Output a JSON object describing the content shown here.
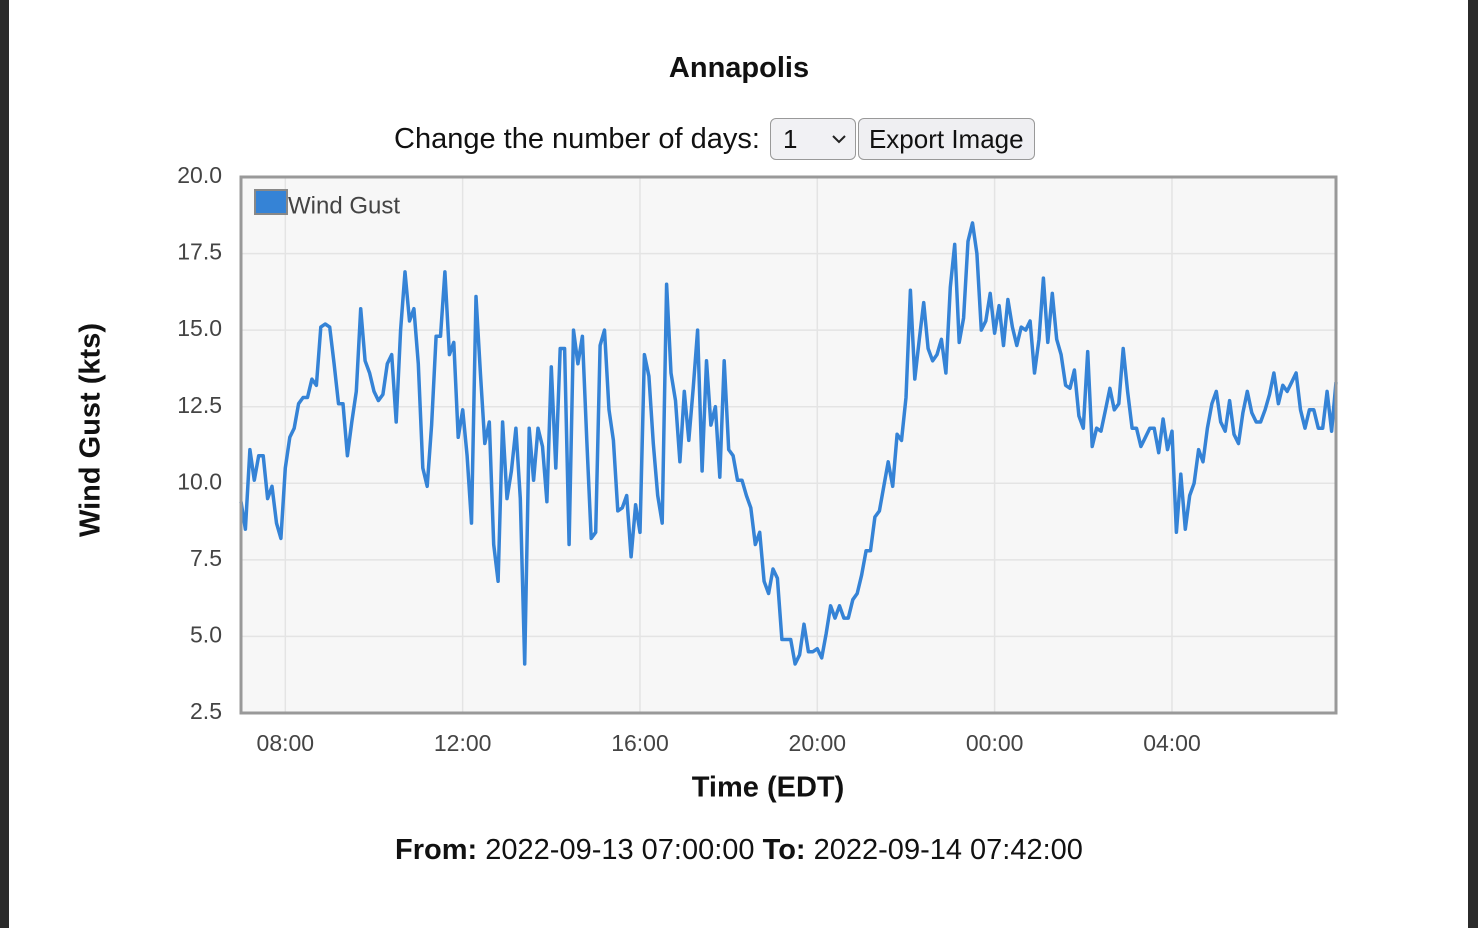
{
  "header": {
    "title": "Annapolis"
  },
  "controls": {
    "days_label": "Change the number of days:",
    "days_value": "1",
    "export_button": "Export Image"
  },
  "chart_data": {
    "type": "line",
    "xlabel": "Time (EDT)",
    "ylabel": "Wind Gust (kts)",
    "x": [
      "07:00",
      "07:06",
      "07:12",
      "07:18",
      "07:24",
      "07:30",
      "07:36",
      "07:42",
      "07:48",
      "07:54",
      "08:00",
      "08:06",
      "08:12",
      "08:18",
      "08:24",
      "08:30",
      "08:36",
      "08:42",
      "08:48",
      "08:54",
      "09:00",
      "09:06",
      "09:12",
      "09:18",
      "09:24",
      "09:30",
      "09:36",
      "09:42",
      "09:48",
      "09:54",
      "10:00",
      "10:06",
      "10:12",
      "10:18",
      "10:24",
      "10:30",
      "10:36",
      "10:42",
      "10:48",
      "10:54",
      "11:00",
      "11:06",
      "11:12",
      "11:18",
      "11:24",
      "11:30",
      "11:36",
      "11:42",
      "11:48",
      "11:54",
      "12:00",
      "12:06",
      "12:12",
      "12:18",
      "12:24",
      "12:30",
      "12:36",
      "12:42",
      "12:48",
      "12:54",
      "13:00",
      "13:06",
      "13:12",
      "13:18",
      "13:24",
      "13:30",
      "13:36",
      "13:42",
      "13:48",
      "13:54",
      "14:00",
      "14:06",
      "14:12",
      "14:18",
      "14:24",
      "14:30",
      "14:36",
      "14:42",
      "14:48",
      "14:54",
      "15:00",
      "15:06",
      "15:12",
      "15:18",
      "15:24",
      "15:30",
      "15:36",
      "15:42",
      "15:48",
      "15:54",
      "16:00",
      "16:06",
      "16:12",
      "16:18",
      "16:24",
      "16:30",
      "16:36",
      "16:42",
      "16:48",
      "16:54",
      "17:00",
      "17:06",
      "17:12",
      "17:18",
      "17:24",
      "17:30",
      "17:36",
      "17:42",
      "17:48",
      "17:54",
      "18:00",
      "18:06",
      "18:12",
      "18:18",
      "18:24",
      "18:30",
      "18:36",
      "18:42",
      "18:48",
      "18:54",
      "19:00",
      "19:06",
      "19:12",
      "19:18",
      "19:24",
      "19:30",
      "19:36",
      "19:42",
      "19:48",
      "19:54",
      "20:00",
      "20:06",
      "20:12",
      "20:18",
      "20:24",
      "20:30",
      "20:36",
      "20:42",
      "20:48",
      "20:54",
      "21:00",
      "21:06",
      "21:12",
      "21:18",
      "21:24",
      "21:30",
      "21:36",
      "21:42",
      "21:48",
      "21:54",
      "22:00",
      "22:06",
      "22:12",
      "22:18",
      "22:24",
      "22:30",
      "22:36",
      "22:42",
      "22:48",
      "22:54",
      "23:00",
      "23:06",
      "23:12",
      "23:18",
      "23:24",
      "23:30",
      "23:36",
      "23:42",
      "23:48",
      "23:54",
      "00:00",
      "00:06",
      "00:12",
      "00:18",
      "00:24",
      "00:30",
      "00:36",
      "00:42",
      "00:48",
      "00:54",
      "01:00",
      "01:06",
      "01:12",
      "01:18",
      "01:24",
      "01:30",
      "01:36",
      "01:42",
      "01:48",
      "01:54",
      "02:00",
      "02:06",
      "02:12",
      "02:18",
      "02:24",
      "02:30",
      "02:36",
      "02:42",
      "02:48",
      "02:54",
      "03:00",
      "03:06",
      "03:12",
      "03:18",
      "03:24",
      "03:30",
      "03:36",
      "03:42",
      "03:48",
      "03:54",
      "04:00",
      "04:06",
      "04:12",
      "04:18",
      "04:24",
      "04:30",
      "04:36",
      "04:42",
      "04:48",
      "04:54",
      "05:00",
      "05:06",
      "05:12",
      "05:18",
      "05:24",
      "05:30",
      "05:36",
      "05:42",
      "05:48",
      "05:54",
      "06:00",
      "06:06",
      "06:12",
      "06:18",
      "06:24",
      "06:30",
      "06:36",
      "06:42",
      "06:48",
      "06:54",
      "07:00",
      "07:06",
      "07:12",
      "07:18",
      "07:24",
      "07:30",
      "07:36",
      "07:42"
    ],
    "series": [
      {
        "name": "Wind Gust",
        "color": "#3583d6",
        "values": [
          9.4,
          8.5,
          11.1,
          10.1,
          10.9,
          10.9,
          9.5,
          9.9,
          8.7,
          8.2,
          10.5,
          11.5,
          11.8,
          12.6,
          12.8,
          12.8,
          13.4,
          13.2,
          15.1,
          15.2,
          15.1,
          13.9,
          12.6,
          12.6,
          10.9,
          12.0,
          13.0,
          15.7,
          14.0,
          13.6,
          13.0,
          12.7,
          12.9,
          13.9,
          14.2,
          12.0,
          15.0,
          16.9,
          15.3,
          15.7,
          13.9,
          10.5,
          9.9,
          11.9,
          14.8,
          14.8,
          16.9,
          14.2,
          14.6,
          11.5,
          12.4,
          10.9,
          8.7,
          16.1,
          13.6,
          11.3,
          12.0,
          8.0,
          6.8,
          12.0,
          9.5,
          10.4,
          11.8,
          9.5,
          4.1,
          11.8,
          10.1,
          11.8,
          11.2,
          9.4,
          13.8,
          10.5,
          14.4,
          14.4,
          8.0,
          15.0,
          13.9,
          14.8,
          11.4,
          8.2,
          8.4,
          14.5,
          15.0,
          12.4,
          11.4,
          9.1,
          9.2,
          9.6,
          7.6,
          9.3,
          8.4,
          14.2,
          13.5,
          11.3,
          9.6,
          8.7,
          16.5,
          13.6,
          12.7,
          10.7,
          13.0,
          11.4,
          13.1,
          15.0,
          10.4,
          14.0,
          11.9,
          12.5,
          10.2,
          14.0,
          11.1,
          10.9,
          10.1,
          10.1,
          9.6,
          9.2,
          8.0,
          8.4,
          6.8,
          6.4,
          7.2,
          6.9,
          4.9,
          4.9,
          4.9,
          4.1,
          4.4,
          5.4,
          4.5,
          4.5,
          4.6,
          4.3,
          5.1,
          6.0,
          5.6,
          6.0,
          5.6,
          5.6,
          6.2,
          6.4,
          7.0,
          7.8,
          7.8,
          8.9,
          9.1,
          9.9,
          10.7,
          9.9,
          11.6,
          11.4,
          12.8,
          16.3,
          13.4,
          14.7,
          15.9,
          14.4,
          14.0,
          14.2,
          14.7,
          13.6,
          16.4,
          17.8,
          14.6,
          15.4,
          17.9,
          18.5,
          17.5,
          15.0,
          15.3,
          16.2,
          14.9,
          15.8,
          14.5,
          16.0,
          15.1,
          14.5,
          15.1,
          15.0,
          15.3,
          13.6,
          14.7,
          16.7,
          14.6,
          16.2,
          14.7,
          14.2,
          13.2,
          13.1,
          13.7,
          12.2,
          11.8,
          14.3,
          11.2,
          11.8,
          11.7,
          12.4,
          13.1,
          12.4,
          12.6,
          14.4,
          13.0,
          11.8,
          11.8,
          11.2,
          11.5,
          11.8,
          11.8,
          11.0,
          12.1,
          11.1,
          11.7,
          8.4,
          10.3,
          8.5,
          9.6,
          10.0,
          11.1,
          10.7,
          11.8,
          12.6,
          13.0,
          12.0,
          11.7,
          12.7,
          11.6,
          11.3,
          12.3,
          13.0,
          12.3,
          12.0,
          12.0,
          12.4,
          12.9,
          13.6,
          12.6,
          13.2,
          13.0,
          13.3,
          13.6,
          12.4,
          11.8,
          12.4,
          12.4,
          11.8,
          11.8,
          13.0,
          11.7,
          13.3
        ]
      }
    ],
    "xlim": [
      "07:00",
      "07:42"
    ],
    "xticks": [
      "08:00",
      "12:00",
      "16:00",
      "20:00",
      "00:00",
      "04:00"
    ],
    "ylim": [
      2.5,
      20
    ],
    "yticks": [
      2.5,
      {
        "value": 5,
        "label": "5.0"
      },
      7.5,
      {
        "value": 10,
        "label": "10.0"
      },
      12.5,
      {
        "value": 15,
        "label": "15.0"
      },
      17.5,
      {
        "value": 20,
        "label": "20.0"
      }
    ],
    "grid": true,
    "legend": "upper left"
  },
  "footer": {
    "from_label": "From:",
    "from": "2022-09-13 07:00:00",
    "to_label": "To:",
    "to": "2022-09-14 07:42:00"
  }
}
